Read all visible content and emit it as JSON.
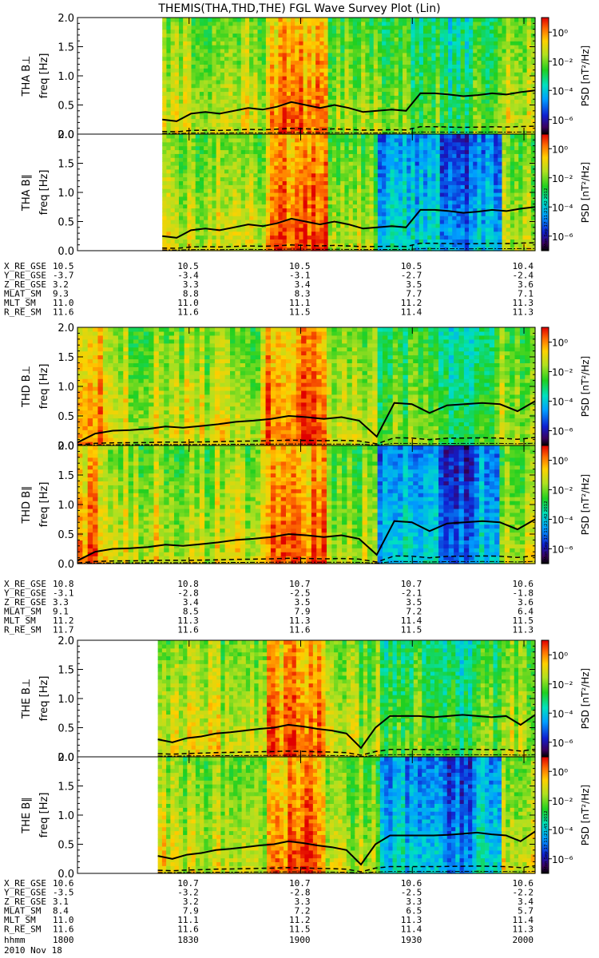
{
  "title": "THEMIS(THA,THD,THE) FGL Wave Survey Plot (Lin)",
  "colorbar": {
    "label": "PSD [nT²/Hz]",
    "label_main": "PSD [nT",
    "label_tail": "/Hz]",
    "ticks": [
      "10⁰",
      "10⁻²",
      "10⁻⁴",
      "10⁻⁶"
    ],
    "tick_values": [
      0,
      -2,
      -4,
      -6
    ],
    "range_log": [
      -7,
      1
    ],
    "stamps": [
      "Mon Sep 17 11:21:42 2012",
      "Mon Sep 17 11:21:42 2012",
      "Mon Sep 17 11:21:45 2012"
    ]
  },
  "time_axis": {
    "label": "hhmm",
    "date": "2010 Nov 18",
    "ticks": [
      "1800",
      "1830",
      "1900",
      "1930",
      "2000"
    ],
    "tick_hours": [
      18.0,
      18.5,
      19.0,
      19.5,
      20.0
    ]
  },
  "freq_axis": {
    "ticks": [
      "0.0",
      "0.5",
      "1.0",
      "1.5",
      "2.0"
    ],
    "tick_values": [
      0,
      0.5,
      1.0,
      1.5,
      2.0
    ]
  },
  "chart_data": [
    {
      "type": "heatmap",
      "probe": "THA",
      "panels": [
        {
          "label": "THA B⊥",
          "ylabel": "freq [Hz]",
          "ylim": [
            0,
            2
          ],
          "data_start_hour": 18.38,
          "fce_line": [
            0.25,
            0.22,
            0.35,
            0.38,
            0.35,
            0.4,
            0.45,
            0.42,
            0.47,
            0.55,
            0.5,
            0.45,
            0.5,
            0.45,
            0.38,
            0.4,
            0.42,
            0.4,
            0.7,
            0.7,
            0.68,
            0.65,
            0.67,
            0.7,
            0.68,
            0.72,
            0.75
          ]
        },
        {
          "label": "THA B∥",
          "ylabel": "freq [Hz]",
          "ylim": [
            0,
            2
          ],
          "data_start_hour": 18.38,
          "fce_line": [
            0.25,
            0.22,
            0.35,
            0.38,
            0.35,
            0.4,
            0.45,
            0.42,
            0.47,
            0.55,
            0.5,
            0.45,
            0.5,
            0.45,
            0.38,
            0.4,
            0.42,
            0.4,
            0.7,
            0.7,
            0.68,
            0.65,
            0.67,
            0.7,
            0.68,
            0.72,
            0.75
          ]
        }
      ],
      "ephemeris": {
        "labels": [
          "X_RE_GSE",
          "Y_RE_GSE",
          "Z_RE_GSE",
          "MLAT_SM",
          "MLT_SM",
          "R_RE_SM"
        ],
        "values": [
          [
            "10.5",
            "10.5",
            "10.5",
            "10.5",
            "10.4"
          ],
          [
            "-3.7",
            "-3.4",
            "-3.1",
            "-2.7",
            "-2.4"
          ],
          [
            "3.2",
            "3.3",
            "3.4",
            "3.5",
            "3.6"
          ],
          [
            "9.3",
            "8.8",
            "8.3",
            "7.7",
            "7.1"
          ],
          [
            "11.0",
            "11.0",
            "11.1",
            "11.2",
            "11.3"
          ],
          [
            "11.6",
            "11.6",
            "11.5",
            "11.4",
            "11.3"
          ]
        ]
      }
    },
    {
      "type": "heatmap",
      "probe": "THD",
      "panels": [
        {
          "label": "THD B⊥",
          "ylabel": "freq [Hz]",
          "ylim": [
            0,
            2
          ],
          "data_start_hour": 18.0,
          "fce_line": [
            0.05,
            0.2,
            0.25,
            0.26,
            0.28,
            0.32,
            0.3,
            0.33,
            0.36,
            0.4,
            0.42,
            0.45,
            0.5,
            0.48,
            0.45,
            0.48,
            0.42,
            0.15,
            0.72,
            0.7,
            0.55,
            0.68,
            0.7,
            0.72,
            0.7,
            0.58,
            0.75
          ]
        },
        {
          "label": "THD B∥",
          "ylabel": "freq [Hz]",
          "ylim": [
            0,
            2
          ],
          "data_start_hour": 18.0,
          "fce_line": [
            0.05,
            0.2,
            0.25,
            0.26,
            0.28,
            0.32,
            0.3,
            0.33,
            0.36,
            0.4,
            0.42,
            0.45,
            0.5,
            0.48,
            0.45,
            0.48,
            0.42,
            0.15,
            0.72,
            0.7,
            0.55,
            0.68,
            0.7,
            0.72,
            0.7,
            0.58,
            0.75
          ]
        }
      ],
      "ephemeris": {
        "labels": [
          "X_RE_GSE",
          "Y_RE_GSE",
          "Z_RE_GSE",
          "MLAT_SM",
          "MLT_SM",
          "R_RE_SM"
        ],
        "values": [
          [
            "10.8",
            "10.8",
            "10.7",
            "10.7",
            "10.6"
          ],
          [
            "-3.1",
            "-2.8",
            "-2.5",
            "-2.1",
            "-1.8"
          ],
          [
            "3.3",
            "3.4",
            "3.5",
            "3.5",
            "3.6"
          ],
          [
            "9.1",
            "8.5",
            "7.9",
            "7.2",
            "6.4"
          ],
          [
            "11.2",
            "11.3",
            "11.3",
            "11.4",
            "11.5"
          ],
          [
            "11.7",
            "11.6",
            "11.6",
            "11.5",
            "11.3"
          ]
        ]
      }
    },
    {
      "type": "heatmap",
      "probe": "THE",
      "panels": [
        {
          "label": "THE B⊥",
          "ylabel": "freq [Hz]",
          "ylim": [
            0,
            2
          ],
          "data_start_hour": 18.36,
          "fce_line": [
            0.3,
            0.25,
            0.32,
            0.35,
            0.4,
            0.42,
            0.45,
            0.48,
            0.5,
            0.55,
            0.52,
            0.48,
            0.45,
            0.4,
            0.15,
            0.5,
            0.7,
            0.7,
            0.7,
            0.68,
            0.7,
            0.72,
            0.7,
            0.68,
            0.7,
            0.55,
            0.72
          ]
        },
        {
          "label": "THE B∥",
          "ylabel": "freq [Hz]",
          "ylim": [
            0,
            2
          ],
          "data_start_hour": 18.36,
          "fce_line": [
            0.3,
            0.25,
            0.32,
            0.35,
            0.4,
            0.42,
            0.45,
            0.48,
            0.5,
            0.55,
            0.52,
            0.48,
            0.45,
            0.4,
            0.15,
            0.5,
            0.65,
            0.65,
            0.65,
            0.65,
            0.66,
            0.68,
            0.7,
            0.67,
            0.65,
            0.55,
            0.72
          ]
        }
      ],
      "ephemeris": {
        "labels": [
          "X_RE_GSE",
          "Y_RE_GSE",
          "Z_RE_GSE",
          "MLAT_SM",
          "MLT_SM",
          "R_RE_SM"
        ],
        "values": [
          [
            "10.6",
            "10.7",
            "10.7",
            "10.6",
            "10.6"
          ],
          [
            "-3.5",
            "-3.2",
            "-2.8",
            "-2.5",
            "-2.2"
          ],
          [
            "3.1",
            "3.2",
            "3.3",
            "3.3",
            "3.4"
          ],
          [
            "8.4",
            "7.9",
            "7.2",
            "6.5",
            "5.7"
          ],
          [
            "11.0",
            "11.1",
            "11.2",
            "11.3",
            "11.4"
          ],
          [
            "11.6",
            "11.6",
            "11.5",
            "11.4",
            "11.3"
          ]
        ]
      }
    }
  ]
}
